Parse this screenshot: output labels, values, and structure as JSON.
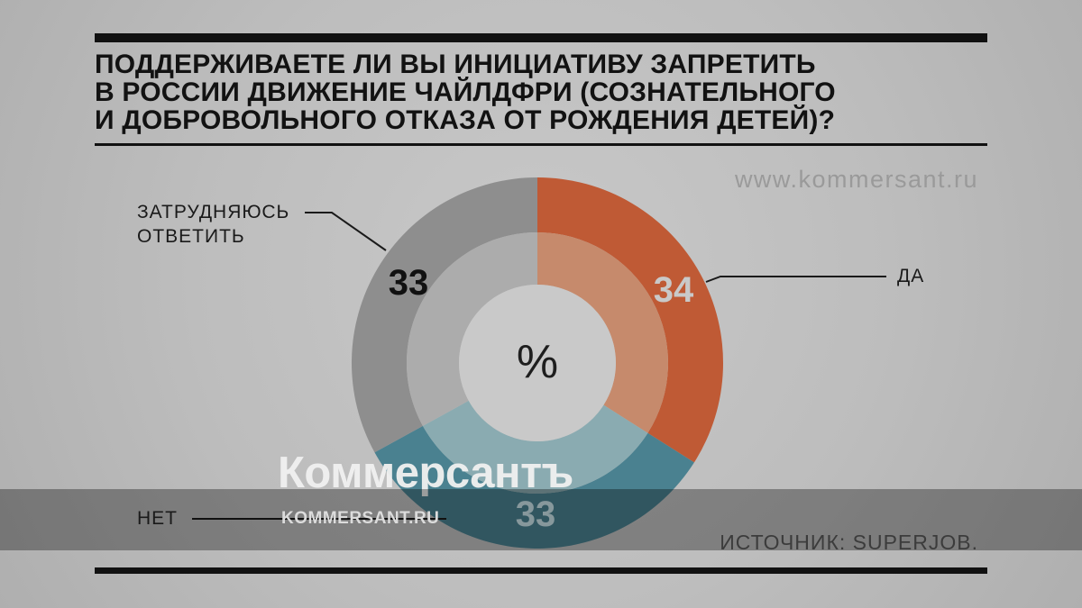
{
  "page": {
    "url_watermark": "www.kommersant.ru",
    "brand_watermark": "Коммерсантъ",
    "brand_watermark_small": "KOMMERSANT.RU"
  },
  "header": {
    "title": "ПОДДЕРЖИВАЕТЕ ЛИ ВЫ ИНИЦИАТИВУ ЗАПРЕТИТЬ\nВ РОССИИ ДВИЖЕНИЕ ЧАЙЛДФРИ (СОЗНАТЕЛЬНОГО\nИ ДОБРОВОЛЬНОГО ОТКАЗА ОТ РОЖДЕНИЯ ДЕТЕЙ)?"
  },
  "chart_data": {
    "type": "pie",
    "style": "two-ring-donut",
    "title": "Поддерживаете ли вы инициативу запретить в России движение чайлдфри?",
    "center_label": "%",
    "start_angle_deg": 0,
    "direction": "clockwise",
    "segments": [
      {
        "label": "ДА",
        "value": 34,
        "color": "#bf5a35",
        "inner_color": "#c68a6c",
        "value_label_color": "#c9c9c9"
      },
      {
        "label": "НЕТ",
        "value": 33,
        "color": "#4a8190",
        "inner_color": "#8aabb1",
        "value_label_color": "#87989c"
      },
      {
        "label": "ЗАТРУДНЯЮСЬ ОТВЕТИТЬ",
        "value": 33,
        "color": "#8e8e8e",
        "inner_color": "#acacac",
        "value_label_color": "#111111"
      }
    ],
    "source": "ИСТОЧНИК: SUPERJOB.",
    "legend_position": "callout-labels",
    "grid": false
  }
}
